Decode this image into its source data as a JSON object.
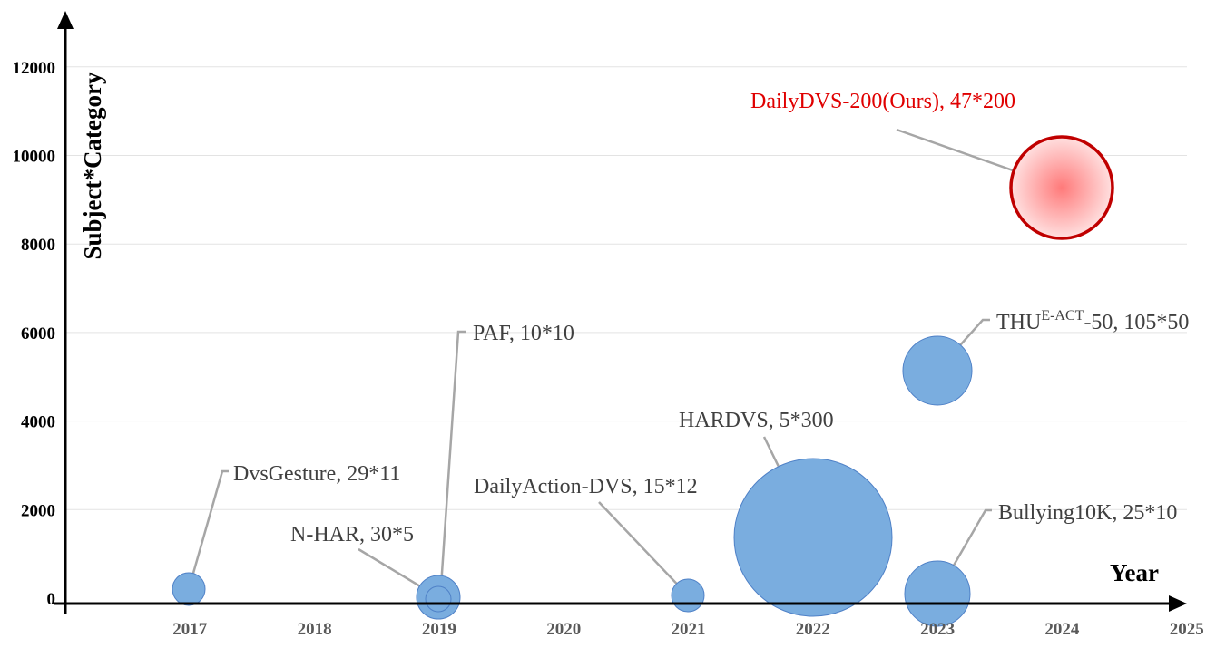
{
  "chart_data": {
    "type": "scatter",
    "subtype": "bubble",
    "title": "",
    "xlabel": "Year",
    "ylabel": "Subject*Category",
    "xlim": [
      2016,
      2025
    ],
    "ylim": [
      0,
      13000
    ],
    "x_ticks": [
      "2017",
      "2018",
      "2019",
      "2020",
      "2021",
      "2022",
      "2023",
      "2024",
      "2025"
    ],
    "y_ticks": [
      "0",
      "2000",
      "4000",
      "6000",
      "8000",
      "10000",
      "12000"
    ],
    "grid": "horizontal",
    "legend": "none",
    "colors": {
      "bubble": "#7aaddf",
      "bubble_edge": "#4f81c7",
      "highlight_center": "#ff8a8a",
      "highlight_edge": "#c00000",
      "highlight_text": "#e00000",
      "leader": "#a6a6a6",
      "gridline": "#e3e3e3"
    },
    "points": [
      {
        "name": "DvsGesture",
        "label": "DvsGesture, 29*11",
        "x": 2017,
        "y": 319,
        "highlight": false
      },
      {
        "name": "N-HAR",
        "label": "N-HAR, 30*5",
        "x": 2019,
        "y": 150,
        "highlight": false
      },
      {
        "name": "PAF",
        "label": "PAF, 10*10",
        "x": 2019,
        "y": 100,
        "highlight": false
      },
      {
        "name": "DailyAction-DVS",
        "label": "DailyAction-DVS, 15*12",
        "x": 2021,
        "y": 180,
        "highlight": false
      },
      {
        "name": "HARDVS",
        "label": "HARDVS, 5*300",
        "x": 2022,
        "y": 1500,
        "highlight": false
      },
      {
        "name": "Bullying10K",
        "label": "Bullying10K, 25*10",
        "x": 2023,
        "y": 250,
        "highlight": false
      },
      {
        "name": "THU-E-ACT-50",
        "label_main": "THU",
        "label_sup": "E-ACT",
        "label_rest": "-50, 105*50",
        "x": 2023,
        "y": 5250,
        "highlight": false
      },
      {
        "name": "DailyDVS-200",
        "label": "DailyDVS-200(Ours), 47*200",
        "x": 2024,
        "y": 9400,
        "highlight": true
      }
    ]
  }
}
